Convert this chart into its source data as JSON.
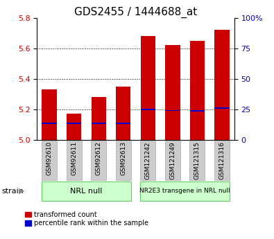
{
  "title": "GDS2455 / 1444688_at",
  "categories": [
    "GSM92610",
    "GSM92611",
    "GSM92612",
    "GSM92613",
    "GSM121242",
    "GSM121249",
    "GSM121315",
    "GSM121316"
  ],
  "red_values": [
    5.33,
    5.17,
    5.28,
    5.35,
    5.68,
    5.62,
    5.65,
    5.72
  ],
  "blue_values": [
    5.108,
    5.107,
    5.107,
    5.11,
    5.2,
    5.192,
    5.191,
    5.207
  ],
  "ylim": [
    5.0,
    5.8
  ],
  "yticks_left": [
    5.0,
    5.2,
    5.4,
    5.6,
    5.8
  ],
  "yticks_right": [
    0,
    25,
    50,
    75,
    100
  ],
  "bar_color": "#cc0000",
  "blue_color": "#0000cc",
  "bar_width": 0.6,
  "group1_label": "NRL null",
  "group2_label": "NR2E3 transgene in NRL null",
  "group_bg_color": "#ccffcc",
  "group_edge_color": "#66cc66",
  "label_bg_color": "#cccccc",
  "label_edge_color": "#aaaaaa",
  "strain_label": "strain",
  "legend1": "transformed count",
  "legend2": "percentile rank within the sample",
  "title_fontsize": 11,
  "tick_fontsize": 8,
  "label_fontsize": 6.5,
  "group_fontsize1": 8,
  "group_fontsize2": 6.5,
  "gridline_ticks": [
    5.2,
    5.4,
    5.6
  ],
  "blue_thickness": 0.008
}
